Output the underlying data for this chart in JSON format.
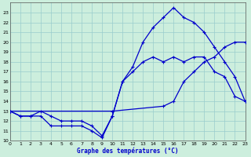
{
  "title": "Graphe des températures (°C)",
  "background_color": "#cceedd",
  "grid_color": "#99cccc",
  "line_color": "#0000cc",
  "x_ticks": [
    0,
    1,
    2,
    3,
    4,
    5,
    6,
    7,
    8,
    9,
    10,
    11,
    12,
    13,
    14,
    15,
    16,
    17,
    18,
    19,
    20,
    21,
    22,
    23
  ],
  "y_ticks": [
    10,
    11,
    12,
    13,
    14,
    15,
    16,
    17,
    18,
    19,
    20,
    21,
    22,
    23
  ],
  "xlim": [
    0,
    23
  ],
  "ylim": [
    10,
    24
  ],
  "line1_x": [
    0,
    1,
    2,
    3,
    4,
    5,
    6,
    7,
    8,
    9,
    10,
    11,
    12,
    13,
    14,
    15,
    16,
    17,
    18,
    19,
    20,
    21,
    22,
    23
  ],
  "line1_y": [
    13,
    12.5,
    12.5,
    12.5,
    11.5,
    11.5,
    11.5,
    11.5,
    11.0,
    10.3,
    12.5,
    16.0,
    17.5,
    20.0,
    21.5,
    22.5,
    23.5,
    22.5,
    22.0,
    21.0,
    19.5,
    18.0,
    16.5,
    14.0
  ],
  "line2_x": [
    0,
    1,
    2,
    3,
    4,
    5,
    6,
    7,
    8,
    9,
    10,
    11,
    12,
    13,
    14,
    15,
    16,
    17,
    18,
    19,
    20,
    21,
    22,
    23
  ],
  "line2_y": [
    13,
    12.5,
    12.5,
    13.0,
    12.5,
    12.0,
    12.0,
    12.0,
    11.5,
    10.5,
    12.5,
    16.0,
    17.0,
    18.0,
    18.5,
    18.0,
    18.5,
    18.0,
    18.5,
    18.5,
    17.0,
    16.5,
    14.5,
    14.0
  ],
  "line3_x": [
    0,
    10,
    15,
    16,
    17,
    18,
    19,
    20,
    21,
    22,
    23
  ],
  "line3_y": [
    13,
    13.0,
    13.5,
    14.0,
    16.0,
    17.0,
    18.0,
    18.5,
    19.5,
    20.0,
    20.0
  ]
}
